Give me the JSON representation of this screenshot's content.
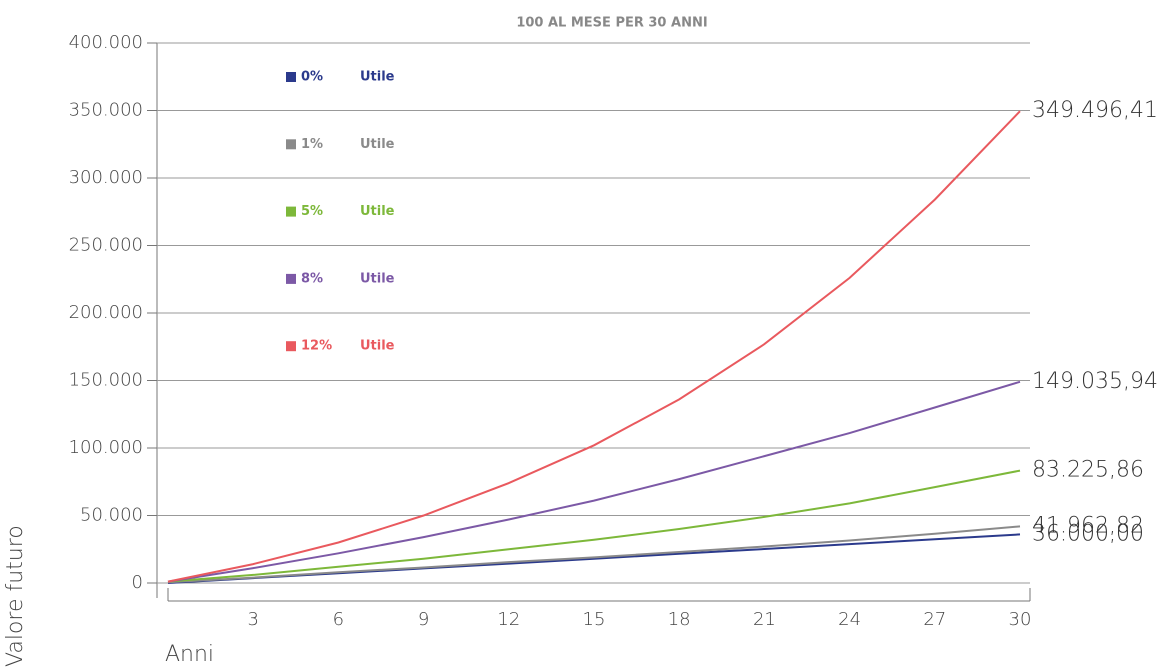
{
  "chart_data": {
    "type": "line",
    "title": "100 AL MESE PER 30 ANNI",
    "x_label": "Anni",
    "y_label": "Valore futuro",
    "x": [
      0,
      3,
      6,
      9,
      12,
      15,
      18,
      21,
      24,
      27,
      30
    ],
    "xlim": [
      0,
      30
    ],
    "xticks": [
      3,
      6,
      9,
      12,
      15,
      18,
      21,
      24,
      27,
      30
    ],
    "ylim": [
      0,
      400000
    ],
    "yticks": [
      0,
      {
        "value": 50000,
        "label": "50.000"
      },
      {
        "value": 100000,
        "label": "100.000"
      },
      {
        "value": 150000,
        "label": "150.000"
      },
      {
        "value": 200000,
        "label": "200.000"
      },
      {
        "value": 250000,
        "label": "250.000"
      },
      {
        "value": 300000,
        "label": "300.000"
      },
      {
        "value": 350000,
        "label": "350.000"
      },
      {
        "value": 400000,
        "label": "400.000"
      }
    ],
    "grid": true,
    "legend": "top-left",
    "series": [
      {
        "name": "0%",
        "note": "Utile",
        "color": "#2b3a8c",
        "values": [
          0,
          3600,
          7200,
          10800,
          14400,
          18000,
          21600,
          25200,
          28800,
          32400,
          36000
        ],
        "value_labels": [
          null,
          null,
          null,
          null,
          null,
          null,
          null,
          null,
          null,
          null,
          "36.000,00"
        ]
      },
      {
        "name": "1%",
        "note": "Utile",
        "color": "#8a8a8a",
        "values": [
          500,
          4000,
          8000,
          11500,
          15500,
          19000,
          23000,
          27000,
          31500,
          36500,
          41962.82
        ],
        "value_labels": [
          null,
          null,
          null,
          null,
          null,
          null,
          null,
          null,
          null,
          null,
          "41.962,82"
        ]
      },
      {
        "name": "5%",
        "note": "Utile",
        "color": "#7db83a",
        "values": [
          1000,
          6000,
          12000,
          18000,
          25000,
          32000,
          40000,
          49000,
          59000,
          71000,
          83225.86
        ],
        "value_labels": [
          null,
          null,
          null,
          null,
          null,
          null,
          null,
          null,
          null,
          null,
          "83.225,86"
        ]
      },
      {
        "name": "8%",
        "note": "Utile",
        "color": "#7c59a6",
        "values": [
          1000,
          11000,
          22000,
          34000,
          47000,
          61000,
          77000,
          94000,
          111000,
          130000,
          149035.94
        ],
        "value_labels": [
          null,
          null,
          null,
          null,
          null,
          null,
          null,
          null,
          null,
          null,
          "149.035,94"
        ]
      },
      {
        "name": "12%",
        "note": "Utile",
        "color": "#e9595e",
        "values": [
          1000,
          14000,
          30000,
          50000,
          74000,
          102000,
          136000,
          177000,
          226000,
          284000,
          349496.41
        ],
        "value_labels": [
          null,
          null,
          null,
          null,
          null,
          null,
          null,
          null,
          null,
          null,
          "349.496,41"
        ]
      }
    ]
  }
}
